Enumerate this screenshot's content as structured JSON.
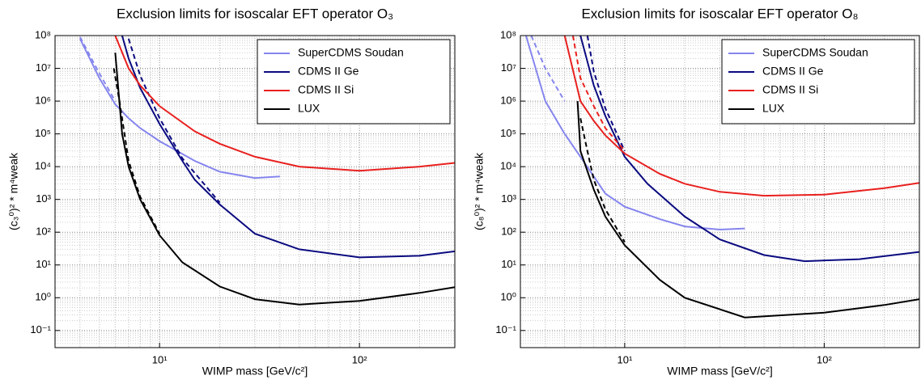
{
  "chart_data": [
    {
      "type": "line",
      "title": "Exclusion limits for isoscalar EFT operator O₃",
      "xlabel": "WIMP mass [GeV/c²]",
      "ylabel": "(c₃⁰)² * m⁴weak",
      "xscale": "log",
      "yscale": "log",
      "grid": true,
      "legend": "upper right",
      "xlim": [
        3,
        300
      ],
      "ylim": [
        0.03,
        100000000
      ],
      "xticks": [
        {
          "value": 10,
          "label": "10¹"
        },
        {
          "value": 100,
          "label": "10²"
        }
      ],
      "yticks": [
        {
          "value": 0.1,
          "label": "10⁻¹"
        },
        {
          "value": 1,
          "label": "10⁰"
        },
        {
          "value": 10,
          "label": "10¹"
        },
        {
          "value": 100,
          "label": "10²"
        },
        {
          "value": 1000,
          "label": "10³"
        },
        {
          "value": 10000,
          "label": "10⁴"
        },
        {
          "value": 100000,
          "label": "10⁵"
        },
        {
          "value": 1000000,
          "label": "10⁶"
        },
        {
          "value": 10000000,
          "label": "10⁷"
        },
        {
          "value": 100000000,
          "label": "10⁸"
        }
      ],
      "series": [
        {
          "name": "SuperCDMS Soudan",
          "color": "#8585ee",
          "x": [
            4,
            5,
            6,
            7,
            8,
            10,
            15,
            20,
            30,
            40
          ],
          "values": [
            80000000,
            5000000,
            800000,
            300000,
            150000,
            60000,
            15000,
            7000,
            4500,
            5000
          ],
          "dashed": {
            "x": [
              4,
              5,
              6
            ],
            "values": [
              90000000,
              7000000,
              1000000
            ]
          }
        },
        {
          "name": "CDMS II Ge",
          "color": "#0a0a80",
          "x": [
            6.5,
            7,
            8,
            10,
            13,
            15,
            20,
            30,
            50,
            100,
            200,
            300
          ],
          "values": [
            100000000,
            20000000,
            2500000,
            200000,
            15000,
            4000,
            700,
            90,
            30,
            17,
            19,
            26
          ],
          "dashed": {
            "x": [
              7,
              8,
              10,
              13,
              20
            ],
            "values": [
              80000000,
              6000000,
              300000,
              18000,
              800
            ]
          }
        },
        {
          "name": "CDMS II Si",
          "color": "#e8201e",
          "x": [
            6,
            7,
            8,
            10,
            15,
            20,
            30,
            50,
            100,
            200,
            300
          ],
          "values": [
            100000000,
            10000000,
            3000000,
            700000,
            120000,
            50000,
            20000,
            10000,
            7500,
            10000,
            13000
          ]
        },
        {
          "name": "LUX",
          "color": "#000000",
          "x": [
            6,
            6.5,
            7,
            8,
            10,
            13,
            20,
            30,
            50,
            100,
            200,
            300
          ],
          "values": [
            30000000,
            100000,
            10000,
            1000,
            80,
            12,
            2.2,
            0.9,
            0.62,
            0.8,
            1.4,
            2.1
          ],
          "dashed": {
            "x": [
              5.9,
              6.3,
              7,
              8,
              10
            ],
            "values": [
              10000000,
              1000000,
              15000,
              1200,
              90
            ]
          }
        }
      ]
    },
    {
      "type": "line",
      "title": "Exclusion limits for isoscalar EFT operator O₈",
      "xlabel": "WIMP mass [GeV/c²]",
      "ylabel": "(c₈⁰)² * m⁴weak",
      "xscale": "log",
      "yscale": "log",
      "grid": true,
      "legend": "upper right",
      "xlim": [
        3,
        300
      ],
      "ylim": [
        0.03,
        100000000
      ],
      "xticks": [
        {
          "value": 10,
          "label": "10¹"
        },
        {
          "value": 100,
          "label": "10²"
        }
      ],
      "yticks": [
        {
          "value": 0.1,
          "label": "10⁻¹"
        },
        {
          "value": 1,
          "label": "10⁰"
        },
        {
          "value": 10,
          "label": "10¹"
        },
        {
          "value": 100,
          "label": "10²"
        },
        {
          "value": 1000,
          "label": "10³"
        },
        {
          "value": 10000,
          "label": "10⁴"
        },
        {
          "value": 100000,
          "label": "10⁵"
        },
        {
          "value": 1000000,
          "label": "10⁶"
        },
        {
          "value": 10000000,
          "label": "10⁷"
        },
        {
          "value": 100000000,
          "label": "10⁸"
        }
      ],
      "series": [
        {
          "name": "SuperCDMS Soudan",
          "color": "#8585ee",
          "x": [
            3.2,
            4,
            5,
            6,
            7,
            8,
            10,
            15,
            20,
            30,
            40
          ],
          "values": [
            100000000,
            1000000,
            100000,
            20000,
            5000,
            1500,
            600,
            250,
            150,
            120,
            130
          ],
          "dashed": {
            "x": [
              3.4,
              4,
              5
            ],
            "values": [
              100000000,
              10000000,
              1000000
            ]
          }
        },
        {
          "name": "CDMS II Ge",
          "color": "#0a0a80",
          "x": [
            6,
            7,
            8,
            10,
            13,
            20,
            30,
            50,
            80,
            150,
            300
          ],
          "values": [
            100000000,
            3000000,
            350000,
            20000,
            3000,
            300,
            60,
            20,
            13,
            15,
            25
          ],
          "dashed": {
            "x": [
              6.5,
              7,
              8,
              10
            ],
            "values": [
              100000000,
              8000000,
              600000,
              30000
            ]
          }
        },
        {
          "name": "CDMS II Si",
          "color": "#e8201e",
          "x": [
            5,
            6,
            7,
            8,
            10,
            15,
            20,
            30,
            50,
            100,
            200,
            300
          ],
          "values": [
            100000000,
            1000000,
            250000,
            90000,
            25000,
            6000,
            3000,
            1700,
            1300,
            1400,
            2200,
            3200
          ],
          "dashed": {
            "x": [
              5.5,
              6,
              7,
              8,
              10
            ],
            "values": [
              100000000,
              5000000,
              700000,
              150000,
              30000
            ]
          }
        },
        {
          "name": "LUX",
          "color": "#000000",
          "x": [
            5.8,
            6,
            7,
            8,
            10,
            15,
            20,
            40,
            100,
            200,
            300
          ],
          "values": [
            1000000,
            30000,
            2000,
            300,
            40,
            3.5,
            1,
            0.25,
            0.35,
            0.6,
            0.9
          ],
          "dashed": {
            "x": [
              6,
              6.5,
              7,
              8,
              10
            ],
            "values": [
              300000,
              30000,
              4000,
              500,
              50
            ]
          }
        }
      ]
    }
  ]
}
